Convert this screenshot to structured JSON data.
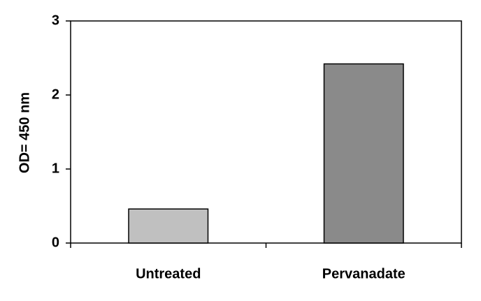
{
  "chart_data": {
    "type": "bar",
    "y_label": "OD= 450 nm",
    "categories": [
      "Untreated",
      "Pervanadate"
    ],
    "values": [
      0.46,
      2.42
    ],
    "colors": [
      "#c0c0c0",
      "#8a8a8a"
    ],
    "ylim": [
      0,
      3
    ],
    "yticks": [
      0,
      1,
      2,
      3
    ],
    "grid": false
  }
}
